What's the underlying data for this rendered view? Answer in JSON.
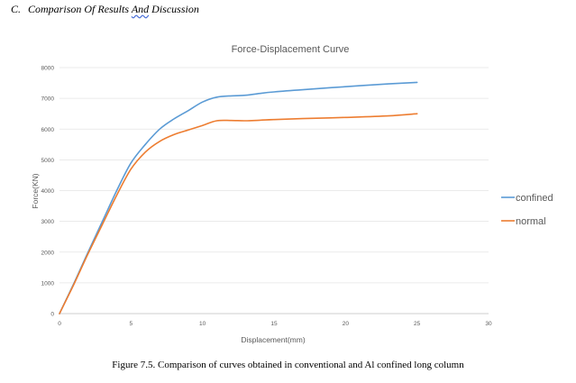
{
  "section_heading": {
    "letter": "C.",
    "before": "Comparison Of Results ",
    "and_word": "And",
    "after": " Discussion"
  },
  "caption": "Figure 7.5. Comparison of curves obtained in conventional and Al confined long column",
  "chart_data": {
    "type": "line",
    "title": "Force-Displacement Curve",
    "xlabel": "Displacement(mm)",
    "ylabel": "Force(KN)",
    "xlim": [
      0,
      30
    ],
    "ylim": [
      0,
      8000
    ],
    "xticks": [
      0,
      5,
      10,
      15,
      20,
      25,
      30
    ],
    "yticks": [
      0,
      1000,
      2000,
      3000,
      4000,
      5000,
      6000,
      7000,
      8000
    ],
    "grid": true,
    "legend_position": "right",
    "series": [
      {
        "name": "confined",
        "color": "#5b9bd5",
        "x": [
          0,
          1,
          2,
          3,
          4,
          5,
          6,
          7,
          8,
          9,
          10,
          11,
          12,
          13,
          14,
          15,
          17,
          20,
          23,
          25
        ],
        "y": [
          0,
          980,
          2000,
          3000,
          4000,
          4900,
          5500,
          6000,
          6330,
          6600,
          6880,
          7040,
          7080,
          7100,
          7160,
          7210,
          7280,
          7380,
          7470,
          7520
        ]
      },
      {
        "name": "normal",
        "color": "#ed7d31",
        "x": [
          0,
          1,
          2,
          3,
          4,
          5,
          6,
          7,
          8,
          9,
          10,
          11,
          12,
          13,
          14,
          15,
          17,
          20,
          23,
          25
        ],
        "y": [
          0,
          950,
          1950,
          2900,
          3850,
          4700,
          5250,
          5600,
          5820,
          5970,
          6120,
          6270,
          6280,
          6270,
          6290,
          6310,
          6340,
          6380,
          6430,
          6500
        ]
      }
    ]
  }
}
